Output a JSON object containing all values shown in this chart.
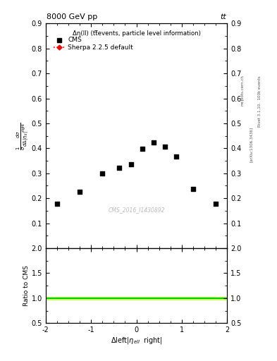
{
  "title_left": "8000 GeV pp",
  "title_right": "tt",
  "inner_title": "Δη(ll) (tt̅events, particle level information)",
  "cms_label": "CMS",
  "sherpa_label": "Sherpa 2.2.5 default",
  "watermark": "CMS_2016_I1430892",
  "ylabel_ratio": "Ratio to CMS",
  "right_label_1": "Rivet 3.1.10,  100k events",
  "right_label_2": "[arXiv:1306.3436]",
  "right_label_3": "mcplots.cern.ch",
  "cms_x_data": [
    -1.75,
    -1.25,
    -0.75,
    -0.375,
    -0.125,
    0.125,
    0.375,
    0.625,
    0.875,
    1.25,
    1.75
  ],
  "cms_y_data": [
    0.178,
    0.227,
    0.298,
    0.322,
    0.335,
    0.397,
    0.424,
    0.407,
    0.368,
    0.238,
    0.178
  ],
  "ylim_main": [
    0.0,
    0.9
  ],
  "ylim_ratio": [
    0.5,
    2.0
  ],
  "xlim": [
    -2.0,
    2.0
  ],
  "ratio_band_color": "#ccff66",
  "ratio_line_color": "#00cc00",
  "ratio_y": 1.0,
  "ratio_band_lo": 0.975,
  "ratio_band_hi": 1.025,
  "cms_marker_color": "black",
  "cms_marker": "s",
  "cms_marker_size": 5,
  "sherpa_color": "red",
  "bg_color": "white",
  "yticks_main": [
    0.1,
    0.2,
    0.3,
    0.4,
    0.5,
    0.6,
    0.7,
    0.8,
    0.9
  ],
  "yticks_ratio": [
    0.5,
    1.0,
    1.5,
    2.0
  ],
  "xticks": [
    -2,
    -1,
    0,
    1,
    2
  ]
}
